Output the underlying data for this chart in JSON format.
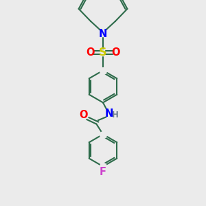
{
  "bg_color": "#ebebeb",
  "atom_colors": {
    "C": "#2d6b4a",
    "N": "#0000ff",
    "O": "#ff0000",
    "S": "#cccc00",
    "F": "#cc44cc",
    "H": "#708090"
  },
  "bond_color": "#2d6b4a",
  "bond_width": 1.5,
  "font_size": 9.5,
  "figsize": [
    3.0,
    3.0
  ],
  "dpi": 100,
  "xlim": [
    0,
    10
  ],
  "ylim": [
    0,
    10
  ]
}
